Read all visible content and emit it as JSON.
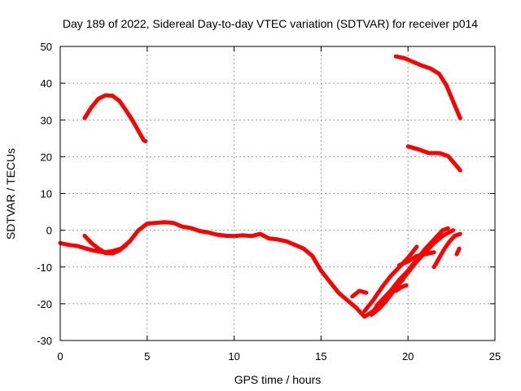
{
  "chart_data": {
    "type": "line",
    "title": "Day 189 of 2022, Sidereal Day-to-day VTEC variation (SDTVAR) for receiver p014",
    "xlabel": "GPS time / hours",
    "ylabel": "SDTVAR / TECUs",
    "xlim": [
      0,
      25
    ],
    "ylim": [
      -30,
      50
    ],
    "xticks": [
      0,
      5,
      10,
      15,
      20,
      25
    ],
    "yticks": [
      -30,
      -20,
      -10,
      0,
      10,
      20,
      30,
      40,
      50
    ],
    "grid": true,
    "color": "#ff0000",
    "series": [
      {
        "name": "arc-1",
        "x": [
          1.4,
          1.8,
          2.2,
          2.6,
          3.0,
          3.4,
          3.8,
          4.2,
          4.5,
          4.8,
          4.9
        ],
        "y": [
          30.5,
          33.5,
          35.8,
          36.7,
          36.6,
          35.2,
          32.5,
          29.5,
          27.0,
          24.5,
          24.2
        ]
      },
      {
        "name": "arc-2",
        "x": [
          19.3,
          19.8,
          20.3,
          20.8,
          21.3,
          21.8,
          22.2,
          22.6,
          23.0
        ],
        "y": [
          47.3,
          46.8,
          45.8,
          44.8,
          44.0,
          42.5,
          39.5,
          35.0,
          30.5
        ]
      },
      {
        "name": "arc-3",
        "x": [
          20.0,
          20.6,
          21.2,
          21.8,
          22.3,
          22.7,
          23.0
        ],
        "y": [
          22.8,
          22.0,
          21.0,
          21.0,
          20.2,
          18.0,
          16.3
        ]
      },
      {
        "name": "arc-4",
        "x": [
          0.0,
          0.5,
          1.0,
          1.5,
          2.0,
          2.5,
          3.0,
          3.5,
          4.0,
          4.5,
          5.0,
          5.5,
          6.0,
          6.5,
          7.0,
          7.5,
          8.0,
          8.5,
          9.0,
          9.5,
          10.0,
          10.5,
          11.0,
          11.5,
          12.0,
          12.5,
          13.0,
          13.5,
          14.0,
          14.5,
          15.0,
          15.5,
          16.0,
          16.5,
          17.0,
          17.5,
          18.0,
          18.5,
          19.0,
          19.5,
          20.0,
          20.5,
          21.0,
          21.5,
          22.0,
          22.3
        ],
        "y": [
          -3.5,
          -4.0,
          -4.3,
          -5.0,
          -5.6,
          -6.0,
          -5.7,
          -5.0,
          -3.0,
          0.0,
          1.8,
          2.0,
          2.2,
          2.0,
          1.0,
          0.6,
          -0.2,
          -0.6,
          -1.2,
          -1.5,
          -1.6,
          -1.4,
          -1.6,
          -1.0,
          -2.2,
          -2.5,
          -3.0,
          -4.0,
          -5.0,
          -7.0,
          -11.0,
          -14.0,
          -17.0,
          -19.0,
          -21.0,
          -23.5,
          -22.0,
          -19.0,
          -16.5,
          -13.5,
          -11.0,
          -8.0,
          -5.0,
          -2.5,
          0.0,
          0.5
        ]
      },
      {
        "name": "arc-5",
        "x": [
          1.4,
          1.8,
          2.2,
          2.6,
          3.0,
          3.4,
          3.8
        ],
        "y": [
          -1.5,
          -3.5,
          -5.0,
          -6.2,
          -6.3,
          -5.5,
          -4.0
        ]
      },
      {
        "name": "arc-6",
        "x": [
          17.5,
          18.0,
          18.5,
          19.0,
          19.5,
          20.0,
          20.5
        ],
        "y": [
          -22.0,
          -19.0,
          -15.5,
          -12.5,
          -10.0,
          -7.5,
          -4.5
        ]
      },
      {
        "name": "arc-7",
        "x": [
          17.9,
          18.3,
          18.7,
          19.1,
          19.5,
          20.0,
          20.5,
          21.0,
          21.5,
          22.0,
          22.6
        ],
        "y": [
          -23.0,
          -21.5,
          -19.5,
          -17.0,
          -14.5,
          -11.5,
          -8.5,
          -6.0,
          -3.5,
          -1.5,
          0.0
        ]
      },
      {
        "name": "arc-8",
        "x": [
          18.2,
          18.7,
          19.2,
          19.7
        ],
        "y": [
          -20.5,
          -18.0,
          -15.5,
          -13.5
        ]
      },
      {
        "name": "arc-9",
        "x": [
          19.5,
          20.0,
          20.5,
          21.0,
          21.5
        ],
        "y": [
          -9.5,
          -8.5,
          -7.0,
          -6.5,
          -6.0
        ]
      },
      {
        "name": "arc-10",
        "x": [
          21.5,
          21.8,
          22.1,
          22.4,
          22.7,
          23.0
        ],
        "y": [
          -10.0,
          -7.5,
          -5.0,
          -3.0,
          -1.5,
          -1.0
        ]
      },
      {
        "name": "arc-11",
        "x": [
          22.8,
          22.95
        ],
        "y": [
          -6.5,
          -5.0
        ]
      },
      {
        "name": "arc-12",
        "x": [
          19.3,
          19.6,
          19.9
        ],
        "y": [
          -16.5,
          -15.5,
          -15.0
        ]
      },
      {
        "name": "arc-13",
        "x": [
          16.8,
          17.2,
          17.6
        ],
        "y": [
          -18.0,
          -16.5,
          -17.0
        ]
      }
    ]
  }
}
